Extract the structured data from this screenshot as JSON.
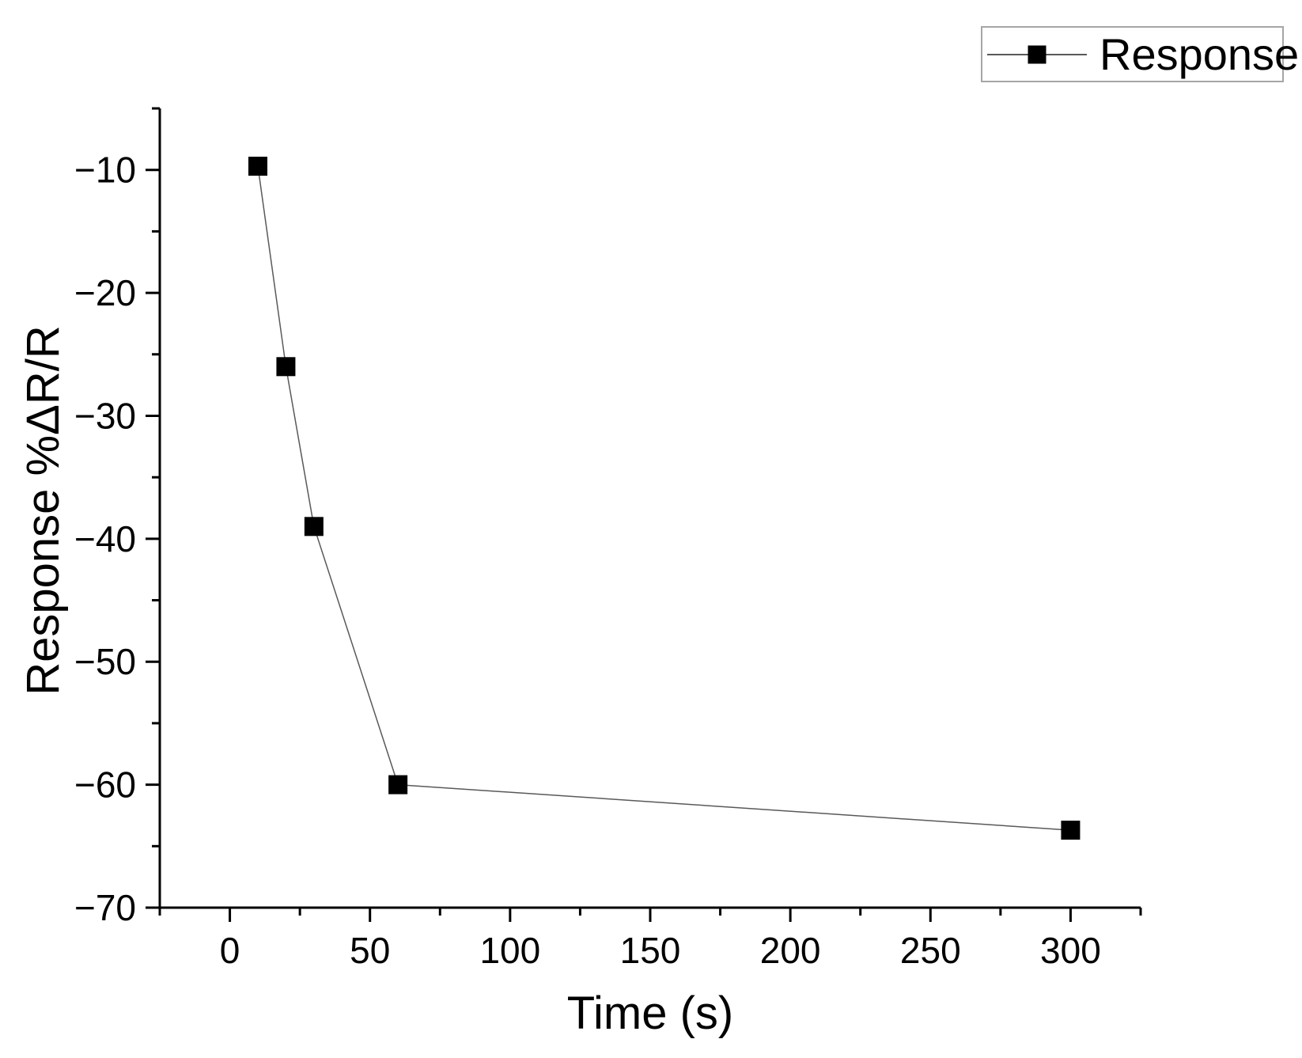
{
  "chart_data": {
    "type": "line",
    "title": "",
    "xlabel": "Time (s)",
    "ylabel": "Response %ΔR/R",
    "xlim": [
      -25,
      325
    ],
    "ylim": [
      -70,
      -5
    ],
    "x_major_ticks": [
      0,
      50,
      100,
      150,
      200,
      250,
      300
    ],
    "x_tick_labels": [
      "0",
      "50",
      "100",
      "150",
      "200",
      "250",
      "300"
    ],
    "x_minor_ticks": [
      -25,
      25,
      75,
      125,
      175,
      225,
      275,
      325
    ],
    "y_major_ticks": [
      -10,
      -20,
      -30,
      -40,
      -50,
      -60,
      -70
    ],
    "y_tick_labels": [
      "−10",
      "−20",
      "−30",
      "−40",
      "−50",
      "−60",
      "−70"
    ],
    "y_minor_ticks": [
      -5,
      -15,
      -25,
      -35,
      -45,
      -55,
      -65
    ],
    "grid": false,
    "legend": {
      "position": "top-right",
      "entries": [
        "Response"
      ]
    },
    "series": [
      {
        "name": "Response",
        "marker": "filled-square",
        "x": [
          10,
          20,
          30,
          60,
          300
        ],
        "y": [
          -9.7,
          -26,
          -39,
          -60,
          -63.7
        ]
      }
    ],
    "colors": {
      "axis": "#000000",
      "tick_text": "#000000",
      "series_line": "#595959",
      "marker": "#000000",
      "legend_border": "#a6a6a6",
      "background": "#ffffff"
    }
  }
}
